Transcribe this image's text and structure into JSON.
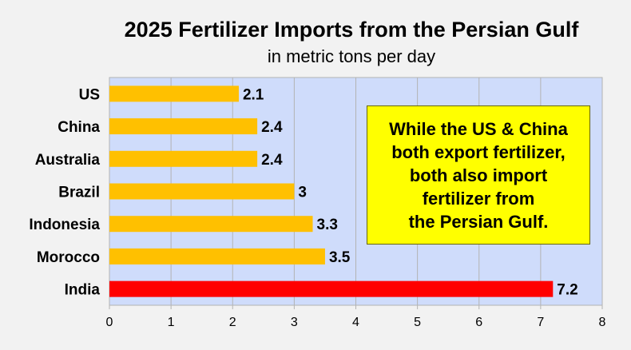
{
  "chart_data": {
    "type": "bar",
    "orientation": "horizontal",
    "title": "2025 Fertilizer Imports from the Persian Gulf",
    "subtitle": "in metric tons per day",
    "categories": [
      "US",
      "China",
      "Australia",
      "Brazil",
      "Indonesia",
      "Morocco",
      "India"
    ],
    "values": [
      2.1,
      2.4,
      2.4,
      3,
      3.3,
      3.5,
      7.2
    ],
    "value_labels": [
      "2.1",
      "2.4",
      "2.4",
      "3",
      "3.3",
      "3.5",
      "7.2"
    ],
    "bar_colors": [
      "#ffc000",
      "#ffc000",
      "#ffc000",
      "#ffc000",
      "#ffc000",
      "#ffc000",
      "#ff0000"
    ],
    "xlim": [
      0,
      8
    ],
    "xticks": [
      "0",
      "1",
      "2",
      "3",
      "4",
      "5",
      "6",
      "7",
      "8"
    ],
    "grid": "vertical",
    "plot_background": "#cfdcfb",
    "annotation": {
      "lines": [
        "While the US & China",
        "both export fertilizer,",
        "both also import",
        "fertilizer from",
        "the Persian Gulf."
      ],
      "background": "#ffff00"
    }
  }
}
